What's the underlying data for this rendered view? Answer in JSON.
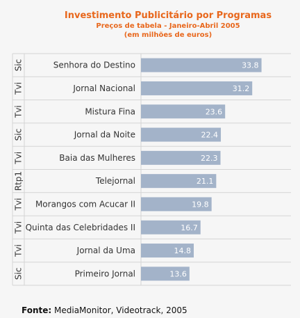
{
  "title": "Investimento Publicitário por Programas",
  "subtitle": "Preços de tabela - Janeiro-Abril 2005",
  "unit_note": "(em milhões de euros)",
  "source_label": "Fonte:",
  "source_text": "MediaMonitor, Videotrack, 2005",
  "colors": {
    "bar": "#a3b3c9",
    "title": "#e8671c",
    "grid": "#d4d4d4",
    "value_text": "#ffffff"
  },
  "chart_data": {
    "type": "bar",
    "orientation": "horizontal",
    "title": "Investimento Publicitário por Programas",
    "subtitle": "Preços de tabela - Janeiro-Abril 2005",
    "categories": [
      "Senhora do Destino",
      "Jornal Nacional",
      "Mistura Fina",
      "Jornal da Noite",
      "Baia das Mulheres",
      "Telejornal",
      "Morangos com Acucar II",
      "Quinta das Celebridades II",
      "Jornal da Uma",
      "Primeiro Jornal"
    ],
    "groups": [
      "Sic",
      "Tvi",
      "Tvi",
      "Sic",
      "Tvi",
      "Rtp1",
      "Tvi",
      "Tvi",
      "Tvi",
      "Sic"
    ],
    "values": [
      33.8,
      31.2,
      23.6,
      22.4,
      22.3,
      21.1,
      19.8,
      16.7,
      14.8,
      13.6
    ],
    "xlim": [
      0,
      37
    ],
    "grid": true,
    "legend": "none"
  }
}
